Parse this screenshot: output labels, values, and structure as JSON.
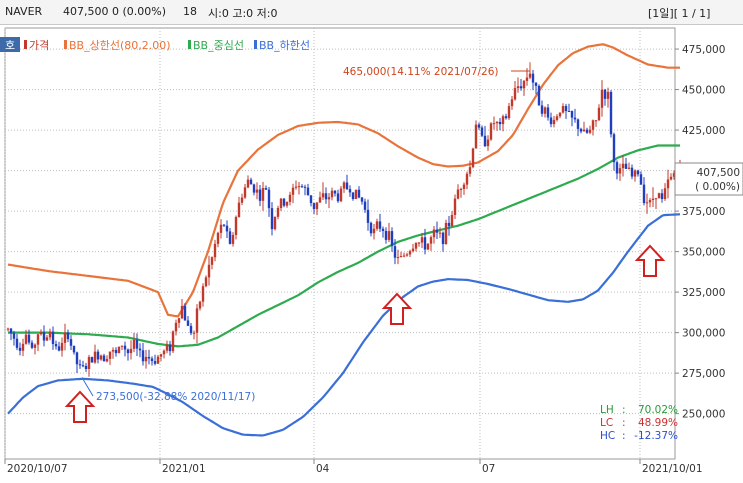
{
  "header": {
    "symbol": "NAVER",
    "price": "407,500",
    "change": "0 (0.00%)",
    "period": "18",
    "ohlc": "시:0 고:0 저:0",
    "page": "[1일][ 1 / 1]"
  },
  "corner_tag": "호",
  "chart_data": {
    "type": "candlestick",
    "legend": [
      {
        "label": "가격",
        "color": "#c0392b"
      },
      {
        "label": "BB_상한선(80,2.00)",
        "color": "#e8743b"
      },
      {
        "label": "BB_중심선",
        "color": "#2eaa4f"
      },
      {
        "label": "BB_하한선",
        "color": "#3a6fd8"
      }
    ],
    "x_ticks": [
      "2020/10/07",
      "2021/01",
      "04",
      "07",
      "2021/10/01"
    ],
    "y_ticks": [
      {
        "value": 250000,
        "label": "250,000"
      },
      {
        "value": 275000,
        "label": "275,000"
      },
      {
        "value": 300000,
        "label": "300,000"
      },
      {
        "value": 325000,
        "label": "325,000"
      },
      {
        "value": 350000,
        "label": "350,000"
      },
      {
        "value": 375000,
        "label": "375,000"
      },
      {
        "value": 400000,
        "label": "400,000"
      },
      {
        "value": 425000,
        "label": "425,000"
      },
      {
        "value": 450000,
        "label": "450,000"
      },
      {
        "value": 475000,
        "label": "475,000"
      }
    ],
    "ylim": [
      222000,
      488000
    ],
    "current": {
      "price": "407,500",
      "change": "( 0.00%)",
      "value": 407500
    },
    "annotations": {
      "high": {
        "text": "465,000(14.11% 2021/07/26)",
        "value": 465000
      },
      "low": {
        "text": "273,500(-32.88% 2020/11/17)",
        "value": 273500
      }
    },
    "stats": [
      {
        "label": "LH",
        "value": "70.02%",
        "color": "#2a9a3c"
      },
      {
        "label": "LC",
        "value": "48.99%",
        "color": "#d03030"
      },
      {
        "label": "HC",
        "value": "-12.37%",
        "color": "#2a4fd0"
      }
    ],
    "price_path": [
      [
        0,
        302000
      ],
      [
        6,
        297000
      ],
      [
        12,
        292000
      ],
      [
        18,
        299000
      ],
      [
        24,
        288000
      ],
      [
        30,
        300000
      ],
      [
        36,
        296000
      ],
      [
        42,
        301000
      ],
      [
        48,
        289000
      ],
      [
        54,
        292000
      ],
      [
        60,
        300000
      ],
      [
        66,
        285000
      ],
      [
        72,
        277000
      ],
      [
        78,
        279000
      ],
      [
        84,
        284000
      ],
      [
        90,
        287000
      ],
      [
        96,
        286000
      ],
      [
        102,
        289000
      ],
      [
        108,
        286000
      ],
      [
        114,
        293000
      ],
      [
        120,
        288000
      ],
      [
        126,
        292000
      ],
      [
        132,
        285000
      ],
      [
        138,
        286000
      ],
      [
        144,
        283000
      ],
      [
        150,
        285000
      ],
      [
        156,
        288000
      ],
      [
        162,
        292000
      ],
      [
        168,
        308000
      ],
      [
        174,
        316000
      ],
      [
        180,
        303000
      ],
      [
        186,
        300000
      ],
      [
        192,
        320000
      ],
      [
        198,
        335000
      ],
      [
        204,
        346000
      ],
      [
        210,
        361000
      ],
      [
        216,
        367000
      ],
      [
        222,
        352000
      ],
      [
        228,
        372000
      ],
      [
        234,
        386000
      ],
      [
        240,
        393000
      ],
      [
        246,
        390000
      ],
      [
        252,
        384000
      ],
      [
        258,
        389000
      ],
      [
        264,
        367000
      ],
      [
        270,
        378000
      ],
      [
        276,
        380000
      ],
      [
        282,
        383000
      ],
      [
        288,
        392000
      ],
      [
        294,
        390000
      ],
      [
        300,
        385000
      ],
      [
        306,
        378000
      ],
      [
        312,
        382000
      ],
      [
        318,
        383000
      ],
      [
        324,
        386000
      ],
      [
        330,
        384000
      ],
      [
        336,
        390000
      ],
      [
        342,
        389000
      ],
      [
        348,
        385000
      ],
      [
        354,
        381000
      ],
      [
        360,
        370000
      ],
      [
        366,
        362000
      ],
      [
        372,
        366000
      ],
      [
        378,
        363000
      ],
      [
        384,
        352000
      ],
      [
        390,
        344000
      ],
      [
        396,
        348000
      ],
      [
        402,
        352000
      ],
      [
        408,
        357000
      ],
      [
        414,
        354000
      ],
      [
        420,
        355000
      ],
      [
        426,
        360000
      ],
      [
        432,
        359000
      ],
      [
        438,
        362000
      ],
      [
        444,
        374000
      ],
      [
        450,
        388000
      ],
      [
        456,
        396000
      ],
      [
        462,
        402000
      ],
      [
        468,
        430000
      ],
      [
        474,
        418000
      ],
      [
        480,
        422000
      ],
      [
        486,
        430000
      ],
      [
        492,
        426000
      ],
      [
        498,
        433000
      ],
      [
        504,
        445000
      ],
      [
        510,
        452000
      ],
      [
        516,
        455000
      ],
      [
        522,
        462000
      ],
      [
        528,
        448000
      ],
      [
        534,
        440000
      ],
      [
        540,
        432000
      ],
      [
        546,
        431000
      ],
      [
        552,
        439000
      ],
      [
        558,
        435000
      ],
      [
        564,
        431000
      ],
      [
        570,
        428000
      ],
      [
        576,
        422000
      ],
      [
        582,
        424000
      ],
      [
        588,
        430000
      ],
      [
        594,
        450000
      ],
      [
        600,
        445000
      ],
      [
        606,
        404000
      ],
      [
        612,
        399000
      ],
      [
        618,
        401000
      ],
      [
        624,
        396000
      ],
      [
        630,
        399000
      ],
      [
        636,
        385000
      ],
      [
        642,
        379000
      ],
      [
        648,
        388000
      ],
      [
        654,
        381000
      ],
      [
        660,
        392000
      ],
      [
        666,
        398000
      ],
      [
        672,
        407500
      ]
    ],
    "bands": {
      "upper": [
        [
          0,
          342000
        ],
        [
          40,
          338000
        ],
        [
          80,
          335000
        ],
        [
          120,
          332000
        ],
        [
          150,
          325000
        ],
        [
          160,
          311000
        ],
        [
          170,
          310000
        ],
        [
          185,
          325000
        ],
        [
          200,
          350000
        ],
        [
          215,
          380000
        ],
        [
          230,
          400000
        ],
        [
          250,
          413000
        ],
        [
          270,
          422000
        ],
        [
          290,
          427500
        ],
        [
          310,
          429500
        ],
        [
          330,
          430000
        ],
        [
          350,
          428500
        ],
        [
          370,
          423000
        ],
        [
          390,
          415000
        ],
        [
          410,
          408000
        ],
        [
          425,
          404000
        ],
        [
          440,
          402500
        ],
        [
          455,
          403000
        ],
        [
          470,
          405000
        ],
        [
          490,
          412000
        ],
        [
          505,
          422000
        ],
        [
          520,
          438000
        ],
        [
          535,
          453000
        ],
        [
          550,
          465000
        ],
        [
          565,
          472500
        ],
        [
          580,
          476500
        ],
        [
          595,
          478000
        ],
        [
          605,
          476000
        ],
        [
          620,
          471000
        ],
        [
          640,
          465500
        ],
        [
          660,
          463500
        ],
        [
          672,
          463500
        ]
      ],
      "middle": [
        [
          0,
          300000
        ],
        [
          40,
          300000
        ],
        [
          80,
          299000
        ],
        [
          120,
          297000
        ],
        [
          150,
          293000
        ],
        [
          170,
          291500
        ],
        [
          190,
          292500
        ],
        [
          210,
          297000
        ],
        [
          230,
          304000
        ],
        [
          250,
          311000
        ],
        [
          270,
          317000
        ],
        [
          290,
          323000
        ],
        [
          310,
          331000
        ],
        [
          330,
          337500
        ],
        [
          350,
          343000
        ],
        [
          370,
          350000
        ],
        [
          390,
          356000
        ],
        [
          410,
          360000
        ],
        [
          430,
          363000
        ],
        [
          450,
          366000
        ],
        [
          470,
          370000
        ],
        [
          490,
          375000
        ],
        [
          510,
          380000
        ],
        [
          530,
          385000
        ],
        [
          550,
          390000
        ],
        [
          570,
          395000
        ],
        [
          590,
          401000
        ],
        [
          610,
          408000
        ],
        [
          630,
          412500
        ],
        [
          650,
          415500
        ],
        [
          672,
          415500
        ]
      ],
      "lower": [
        [
          0,
          250000
        ],
        [
          15,
          260000
        ],
        [
          30,
          267000
        ],
        [
          50,
          270500
        ],
        [
          75,
          271500
        ],
        [
          100,
          270500
        ],
        [
          125,
          268500
        ],
        [
          145,
          266500
        ],
        [
          160,
          262000
        ],
        [
          175,
          257000
        ],
        [
          195,
          248500
        ],
        [
          215,
          241000
        ],
        [
          235,
          237000
        ],
        [
          255,
          236500
        ],
        [
          275,
          240000
        ],
        [
          295,
          248000
        ],
        [
          315,
          260000
        ],
        [
          335,
          275000
        ],
        [
          355,
          294000
        ],
        [
          375,
          310500
        ],
        [
          395,
          322000
        ],
        [
          410,
          328500
        ],
        [
          425,
          331500
        ],
        [
          440,
          333000
        ],
        [
          460,
          332500
        ],
        [
          480,
          330000
        ],
        [
          500,
          327000
        ],
        [
          520,
          323500
        ],
        [
          540,
          320000
        ],
        [
          560,
          319000
        ],
        [
          575,
          320500
        ],
        [
          590,
          326000
        ],
        [
          605,
          337000
        ],
        [
          620,
          350000
        ],
        [
          640,
          366000
        ],
        [
          655,
          372500
        ],
        [
          672,
          373000
        ]
      ]
    }
  }
}
